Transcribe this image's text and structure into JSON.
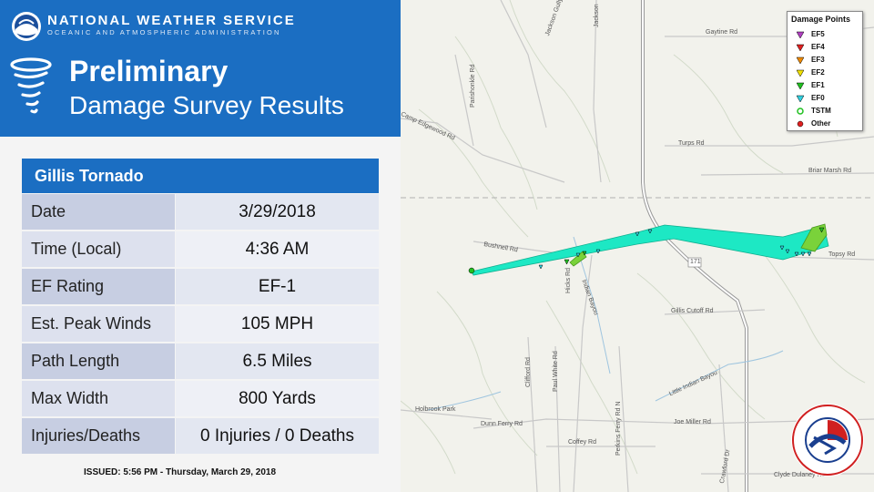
{
  "header": {
    "agency_name": "NATIONAL WEATHER SERVICE",
    "agency_sub": "OCEANIC AND ATMOSPHERIC ADMINISTRATION",
    "title_line1": "Preliminary",
    "title_line2": "Damage Survey Results"
  },
  "table": {
    "heading": "Gillis Tornado",
    "rows": [
      {
        "label": "Date",
        "value": "3/29/2018"
      },
      {
        "label": "Time (Local)",
        "value": "4:36 AM"
      },
      {
        "label": "EF Rating",
        "value": "EF-1"
      },
      {
        "label": "Est. Peak Winds",
        "value": "105 MPH"
      },
      {
        "label": "Path Length",
        "value": "6.5 Miles"
      },
      {
        "label": "Max Width",
        "value": "800 Yards"
      },
      {
        "label": "Injuries/Deaths",
        "value": "0 Injuries / 0 Deaths"
      }
    ]
  },
  "issued": "ISSUED: 5:56 PM - Thursday, March 29, 2018",
  "legend": {
    "title": "Damage Points",
    "items": [
      {
        "label": "EF5",
        "color": "#b040c0",
        "shape": "triangle"
      },
      {
        "label": "EF4",
        "color": "#e02020",
        "shape": "triangle"
      },
      {
        "label": "EF3",
        "color": "#f08a00",
        "shape": "triangle"
      },
      {
        "label": "EF2",
        "color": "#f0e000",
        "shape": "triangle"
      },
      {
        "label": "EF1",
        "color": "#20c020",
        "shape": "triangle"
      },
      {
        "label": "EF0",
        "color": "#30d0e0",
        "shape": "triangle"
      },
      {
        "label": "TSTM",
        "color": "#20c020",
        "shape": "circle"
      },
      {
        "label": "Other",
        "color": "#e02020",
        "shape": "circle"
      }
    ]
  },
  "map_labels": {
    "jackson_gully": "Jackson Gully",
    "jackson": "Jackson",
    "gaytine": "Gaytine Rd",
    "parishonkle": "Parishonkle Rd",
    "camp_edgewood": "Camp Edgewood Rd",
    "turps": "Turps Rd",
    "briar_marsh": "Briar Marsh Rd",
    "bushnell": "Bushnell Rd",
    "topsy": "Topsy Rd",
    "hwy171": "171",
    "hicks": "Hicks Rd",
    "indian_bayou": "Indian Bayou",
    "gillis_cutoff": "Gillis Cutoff Rd",
    "little_indian_bayou": "Little Indian Bayou",
    "clifford": "Clifford Rd",
    "paul_white": "Paul White Rd",
    "perkins_ferry": "Perkins Ferry Rd N",
    "holbrook": "Holbrook Park",
    "dunn_ferry": "Dunn Ferry Rd",
    "joe_miller": "Joe Miller Rd",
    "coffey": "Coffey Rd",
    "crawford": "Crawford Dr",
    "clyde_dulaney": "Clyde Dulaney Rd"
  }
}
